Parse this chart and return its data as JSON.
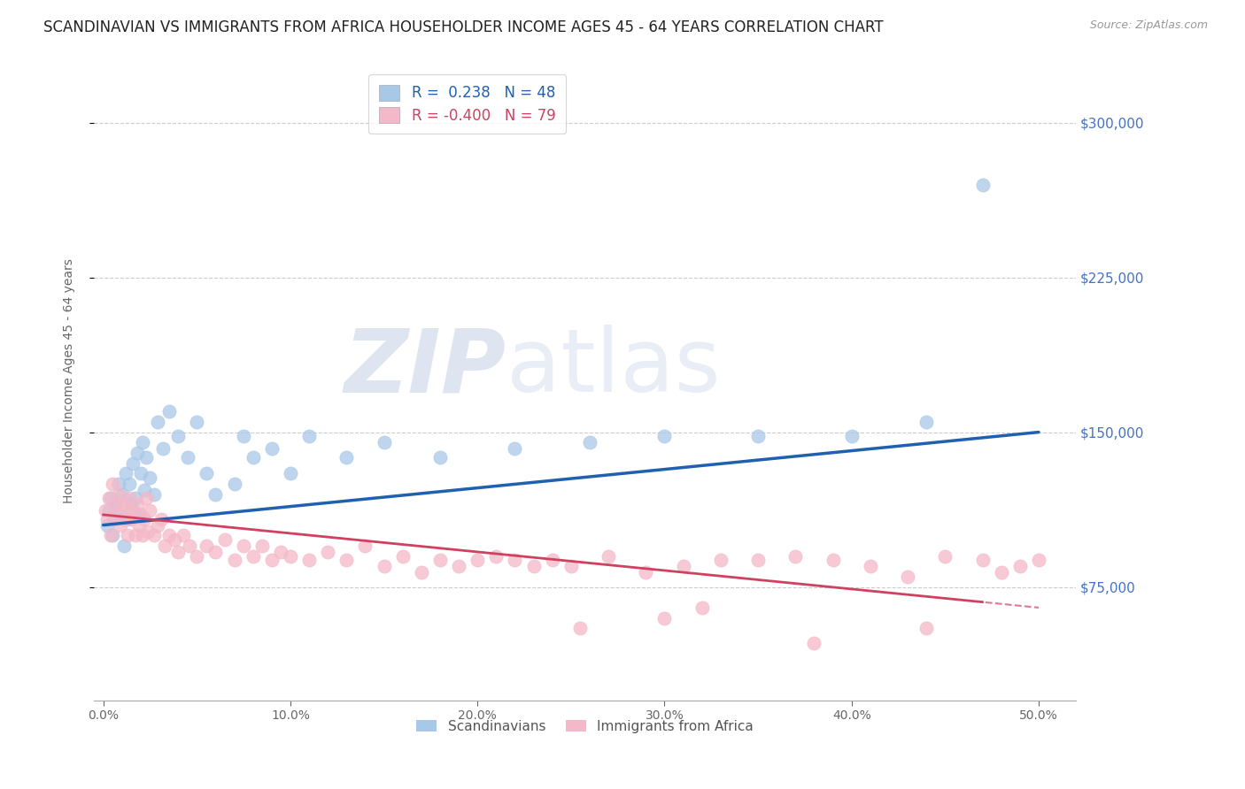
{
  "title": "SCANDINAVIAN VS IMMIGRANTS FROM AFRICA HOUSEHOLDER INCOME AGES 45 - 64 YEARS CORRELATION CHART",
  "source": "Source: ZipAtlas.com",
  "ylabel": "Householder Income Ages 45 - 64 years",
  "xlabel_ticks": [
    "0.0%",
    "10.0%",
    "20.0%",
    "30.0%",
    "40.0%",
    "50.0%"
  ],
  "xlabel_vals": [
    0.0,
    10.0,
    20.0,
    30.0,
    40.0,
    50.0
  ],
  "ytick_vals": [
    75000,
    150000,
    225000,
    300000
  ],
  "ytick_labels": [
    "$75,000",
    "$150,000",
    "$225,000",
    "$300,000"
  ],
  "xlim": [
    -0.5,
    52.0
  ],
  "ylim": [
    20000,
    330000
  ],
  "legend_R_blue": "0.238",
  "legend_N_blue": "48",
  "legend_R_pink": "-0.400",
  "legend_N_pink": "79",
  "legend_label_blue": "Scandinavians",
  "legend_label_pink": "Immigrants from Africa",
  "blue_scatter_color": "#a8c8e8",
  "pink_scatter_color": "#f4b8c8",
  "trend_blue_color": "#2060b0",
  "trend_pink_color": "#d04060",
  "title_fontsize": 12,
  "axis_label_fontsize": 10,
  "tick_fontsize": 10,
  "scandinavian_x": [
    0.2,
    0.3,
    0.4,
    0.5,
    0.6,
    0.7,
    0.8,
    0.9,
    1.0,
    1.1,
    1.2,
    1.3,
    1.4,
    1.5,
    1.6,
    1.7,
    1.8,
    1.9,
    2.0,
    2.1,
    2.2,
    2.3,
    2.5,
    2.7,
    2.9,
    3.2,
    3.5,
    4.0,
    4.5,
    5.0,
    5.5,
    6.0,
    7.0,
    7.5,
    8.0,
    9.0,
    10.0,
    11.0,
    13.0,
    15.0,
    18.0,
    22.0,
    26.0,
    30.0,
    35.0,
    40.0,
    44.0,
    47.0
  ],
  "scandinavian_y": [
    105000,
    112000,
    118000,
    100000,
    108000,
    115000,
    125000,
    110000,
    120000,
    95000,
    130000,
    108000,
    125000,
    115000,
    135000,
    118000,
    140000,
    110000,
    130000,
    145000,
    122000,
    138000,
    128000,
    120000,
    155000,
    142000,
    160000,
    148000,
    138000,
    155000,
    130000,
    120000,
    125000,
    148000,
    138000,
    142000,
    130000,
    148000,
    138000,
    145000,
    138000,
    142000,
    145000,
    148000,
    148000,
    148000,
    155000,
    270000
  ],
  "africa_x": [
    0.1,
    0.2,
    0.3,
    0.4,
    0.5,
    0.6,
    0.7,
    0.8,
    0.9,
    1.0,
    1.1,
    1.2,
    1.3,
    1.4,
    1.5,
    1.6,
    1.7,
    1.8,
    1.9,
    2.0,
    2.1,
    2.2,
    2.3,
    2.4,
    2.5,
    2.7,
    2.9,
    3.1,
    3.3,
    3.5,
    3.8,
    4.0,
    4.3,
    4.6,
    5.0,
    5.5,
    6.0,
    6.5,
    7.0,
    7.5,
    8.0,
    8.5,
    9.0,
    9.5,
    10.0,
    11.0,
    12.0,
    13.0,
    14.0,
    15.0,
    16.0,
    17.0,
    18.0,
    19.0,
    20.0,
    21.0,
    22.0,
    23.0,
    24.0,
    25.0,
    27.0,
    29.0,
    31.0,
    33.0,
    35.0,
    37.0,
    39.0,
    41.0,
    43.0,
    45.0,
    47.0,
    48.0,
    49.0,
    50.0,
    25.5,
    30.0,
    32.0,
    38.0,
    44.0
  ],
  "africa_y": [
    112000,
    108000,
    118000,
    100000,
    125000,
    110000,
    115000,
    120000,
    105000,
    115000,
    108000,
    112000,
    100000,
    118000,
    108000,
    112000,
    100000,
    115000,
    105000,
    110000,
    100000,
    108000,
    118000,
    102000,
    112000,
    100000,
    105000,
    108000,
    95000,
    100000,
    98000,
    92000,
    100000,
    95000,
    90000,
    95000,
    92000,
    98000,
    88000,
    95000,
    90000,
    95000,
    88000,
    92000,
    90000,
    88000,
    92000,
    88000,
    95000,
    85000,
    90000,
    82000,
    88000,
    85000,
    88000,
    90000,
    88000,
    85000,
    88000,
    85000,
    90000,
    82000,
    85000,
    88000,
    88000,
    90000,
    88000,
    85000,
    80000,
    90000,
    88000,
    82000,
    85000,
    88000,
    55000,
    60000,
    65000,
    48000,
    55000
  ]
}
